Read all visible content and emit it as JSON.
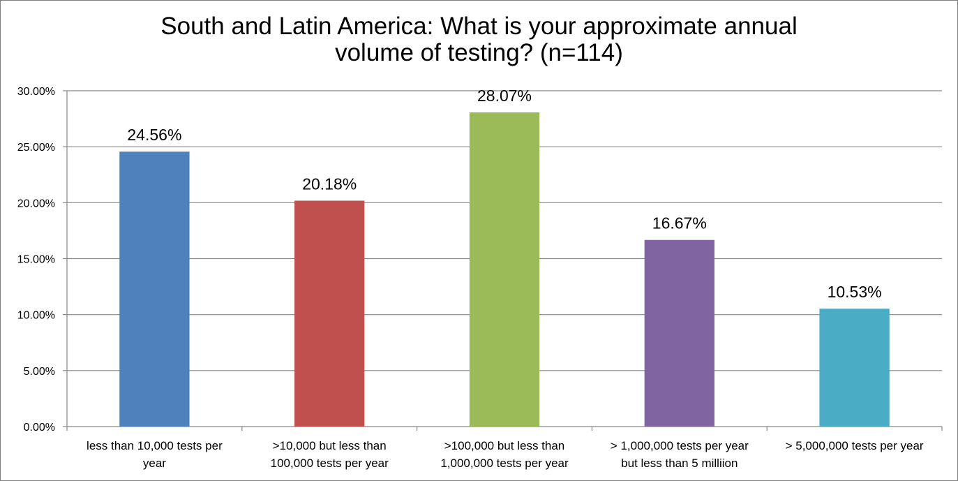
{
  "chart_data": {
    "type": "bar",
    "title": "South and Latin America: What is your approximate annual volume of testing? (n=114)",
    "title_lines": [
      "South and Latin America: What is your approximate annual",
      "volume of testing? (n=114)"
    ],
    "xlabel": "",
    "ylabel": "",
    "ylim": [
      0,
      30
    ],
    "yticks": [
      0,
      5,
      10,
      15,
      20,
      25,
      30
    ],
    "ytick_labels": [
      "0.00%",
      "5.00%",
      "10.00%",
      "15.00%",
      "20.00%",
      "25.00%",
      "30.00%"
    ],
    "grid": true,
    "legend": "none",
    "categories": [
      [
        "less than 10,000 tests per",
        "year"
      ],
      [
        ">10,000 but less than",
        "100,000 tests per year"
      ],
      [
        ">100,000 but less than",
        "1,000,000 tests per year"
      ],
      [
        "> 1,000,000 tests per year",
        "but less than 5 milliion"
      ],
      [
        "> 5,000,000 tests per year"
      ]
    ],
    "values": [
      24.56,
      20.18,
      28.07,
      16.67,
      10.53
    ],
    "data_labels": [
      "24.56%",
      "20.18%",
      "28.07%",
      "16.67%",
      "10.53%"
    ],
    "colors": [
      "#4F81BD",
      "#C0504D",
      "#9BBB59",
      "#8064A2",
      "#4BACC6"
    ],
    "gridline_color": "#868686",
    "axis_color": "#868686"
  }
}
